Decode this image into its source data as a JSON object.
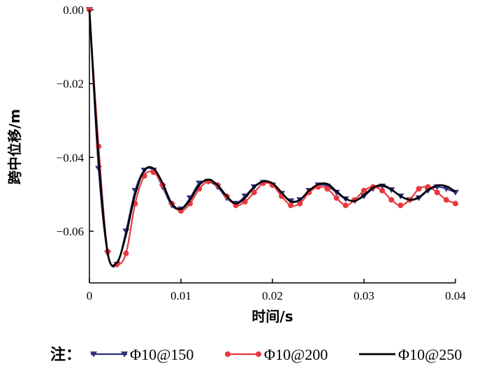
{
  "chart_data": {
    "type": "line",
    "xlabel": "时间/s",
    "ylabel": "跨中位移/m",
    "xlim": [
      0,
      0.04
    ],
    "ylim": [
      -0.074,
      0
    ],
    "x_ticks": [
      0,
      0.01,
      0.02,
      0.03,
      0.04
    ],
    "x_tick_labels": [
      "0",
      "0.01",
      "0.02",
      "0.03",
      "0.04"
    ],
    "y_ticks": [
      0,
      -0.02,
      -0.04,
      -0.06
    ],
    "y_tick_labels": [
      "0.00",
      "−0.02",
      "−0.04",
      "−0.06"
    ],
    "grid": false,
    "legend_position": "bottom",
    "legend_prefix": "注：",
    "series": [
      {
        "name": "Φ10@150",
        "color": "#2e2e7e",
        "marker": "triangle-down",
        "x": [
          0,
          0.001,
          0.002,
          0.003,
          0.004,
          0.005,
          0.006,
          0.007,
          0.008,
          0.009,
          0.01,
          0.011,
          0.012,
          0.013,
          0.014,
          0.015,
          0.016,
          0.017,
          0.018,
          0.019,
          0.02,
          0.021,
          0.022,
          0.023,
          0.024,
          0.025,
          0.026,
          0.027,
          0.028,
          0.029,
          0.03,
          0.031,
          0.032,
          0.033,
          0.034,
          0.035,
          0.036,
          0.037,
          0.038,
          0.039,
          0.04
        ],
        "y": [
          0,
          -0.043,
          -0.066,
          -0.069,
          -0.06,
          -0.049,
          -0.0435,
          -0.0435,
          -0.048,
          -0.053,
          -0.054,
          -0.051,
          -0.047,
          -0.0465,
          -0.048,
          -0.051,
          -0.0525,
          -0.0505,
          -0.048,
          -0.0468,
          -0.0475,
          -0.0498,
          -0.0518,
          -0.0515,
          -0.049,
          -0.0475,
          -0.0478,
          -0.0495,
          -0.0513,
          -0.0518,
          -0.0505,
          -0.0485,
          -0.0478,
          -0.0488,
          -0.0505,
          -0.0515,
          -0.051,
          -0.049,
          -0.048,
          -0.0485,
          -0.0495
        ]
      },
      {
        "name": "Φ10@200",
        "color": "#e8383d",
        "marker": "circle",
        "x": [
          0,
          0.001,
          0.002,
          0.003,
          0.004,
          0.005,
          0.006,
          0.007,
          0.008,
          0.009,
          0.01,
          0.011,
          0.012,
          0.013,
          0.014,
          0.015,
          0.016,
          0.017,
          0.018,
          0.019,
          0.02,
          0.021,
          0.022,
          0.023,
          0.024,
          0.025,
          0.026,
          0.027,
          0.028,
          0.029,
          0.03,
          0.031,
          0.032,
          0.033,
          0.034,
          0.035,
          0.036,
          0.037,
          0.038,
          0.039,
          0.04
        ],
        "y": [
          0,
          -0.037,
          -0.0655,
          -0.069,
          -0.066,
          -0.0525,
          -0.045,
          -0.044,
          -0.0475,
          -0.0525,
          -0.0545,
          -0.0525,
          -0.0485,
          -0.0465,
          -0.0475,
          -0.0505,
          -0.053,
          -0.052,
          -0.0495,
          -0.047,
          -0.0475,
          -0.0505,
          -0.053,
          -0.0525,
          -0.0495,
          -0.048,
          -0.0485,
          -0.051,
          -0.053,
          -0.0515,
          -0.049,
          -0.048,
          -0.049,
          -0.0515,
          -0.053,
          -0.0515,
          -0.0485,
          -0.048,
          -0.0495,
          -0.0515,
          -0.0525
        ]
      },
      {
        "name": "Φ10@250",
        "color": "#000000",
        "marker": "none",
        "x": [
          0,
          0.001,
          0.002,
          0.003,
          0.004,
          0.005,
          0.006,
          0.007,
          0.008,
          0.009,
          0.01,
          0.011,
          0.012,
          0.013,
          0.014,
          0.015,
          0.016,
          0.017,
          0.018,
          0.019,
          0.02,
          0.021,
          0.022,
          0.023,
          0.024,
          0.025,
          0.026,
          0.027,
          0.028,
          0.029,
          0.03,
          0.031,
          0.032,
          0.033,
          0.034,
          0.035,
          0.036,
          0.037,
          0.038,
          0.039,
          0.04
        ],
        "y": [
          0,
          -0.04,
          -0.066,
          -0.0685,
          -0.061,
          -0.05,
          -0.0435,
          -0.043,
          -0.047,
          -0.0525,
          -0.054,
          -0.0515,
          -0.0475,
          -0.046,
          -0.0475,
          -0.0505,
          -0.0525,
          -0.051,
          -0.048,
          -0.0465,
          -0.047,
          -0.0495,
          -0.052,
          -0.0515,
          -0.049,
          -0.0473,
          -0.0472,
          -0.0492,
          -0.0512,
          -0.0518,
          -0.0502,
          -0.0482,
          -0.0475,
          -0.0487,
          -0.0505,
          -0.0515,
          -0.0508,
          -0.0488,
          -0.0476,
          -0.0478,
          -0.0493
        ]
      }
    ]
  }
}
